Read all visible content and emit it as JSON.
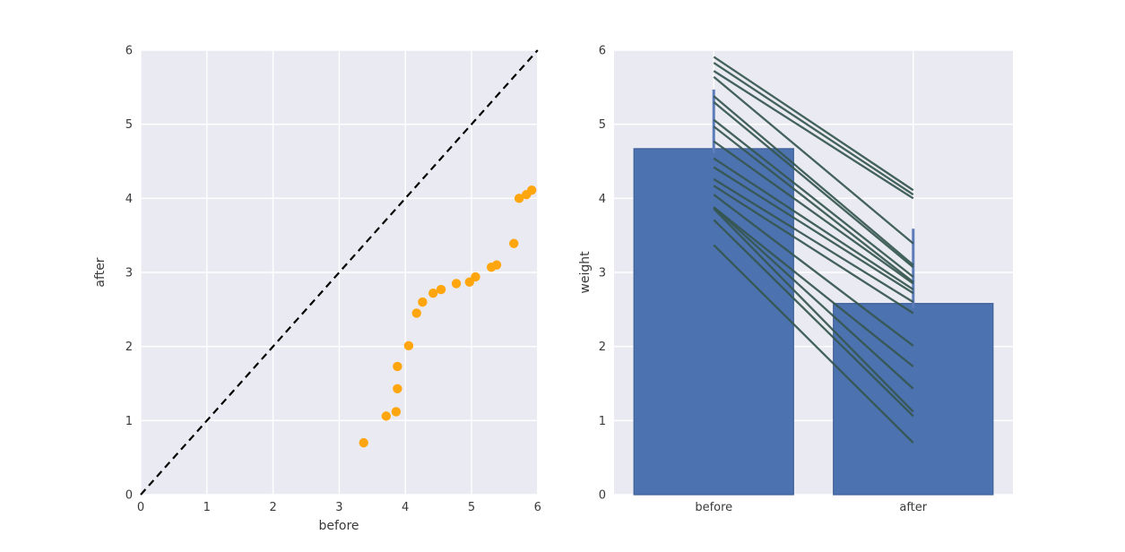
{
  "figure": {
    "background": "#ffffff"
  },
  "palette": {
    "axes_background": "#eaeaf2",
    "grid": "#ffffff",
    "scatter_marker": "#ffa60f",
    "identity_line": "#000000",
    "bar_fill": "#4c72b0",
    "bar_edge": "#41629b",
    "error_bar": "#5c7db9",
    "pair_line": "#35564f",
    "text": "#3a3a3a"
  },
  "chart_data": [
    {
      "id": "scatter-before-after",
      "type": "scatter",
      "title": "",
      "xlabel": "before",
      "ylabel": "after",
      "xlim": [
        0,
        6
      ],
      "ylim": [
        0,
        6
      ],
      "xticks": [
        "0",
        "1",
        "2",
        "3",
        "4",
        "5",
        "6"
      ],
      "yticks": [
        "0",
        "1",
        "2",
        "3",
        "4",
        "5",
        "6"
      ],
      "grid": true,
      "identity_line": {
        "style": "dashed",
        "from": [
          0,
          0
        ],
        "to": [
          6,
          6
        ]
      },
      "points": [
        [
          3.37,
          0.7
        ],
        [
          3.71,
          1.06
        ],
        [
          3.86,
          1.12
        ],
        [
          3.88,
          1.43
        ],
        [
          3.88,
          1.73
        ],
        [
          4.05,
          2.01
        ],
        [
          4.17,
          2.45
        ],
        [
          4.26,
          2.6
        ],
        [
          4.42,
          2.72
        ],
        [
          4.54,
          2.77
        ],
        [
          4.77,
          2.85
        ],
        [
          4.97,
          2.87
        ],
        [
          5.06,
          2.94
        ],
        [
          5.3,
          3.07
        ],
        [
          5.38,
          3.1
        ],
        [
          5.64,
          3.39
        ],
        [
          5.72,
          4.0
        ],
        [
          5.83,
          4.05
        ],
        [
          5.91,
          4.11
        ]
      ]
    },
    {
      "id": "paired-bar-weight",
      "type": "bar",
      "title": "",
      "categories": [
        "before",
        "after"
      ],
      "values": [
        4.67,
        2.58
      ],
      "error_intervals": [
        [
          3.87,
          5.47
        ],
        [
          1.57,
          3.59
        ]
      ],
      "xlabel": "",
      "ylabel": "weight",
      "ylim": [
        0,
        6
      ],
      "yticks": [
        "0",
        "1",
        "2",
        "3",
        "4",
        "5",
        "6"
      ],
      "grid": true,
      "pairs": [
        [
          3.37,
          0.7
        ],
        [
          3.71,
          1.06
        ],
        [
          3.86,
          1.12
        ],
        [
          3.88,
          1.43
        ],
        [
          3.88,
          1.73
        ],
        [
          4.05,
          2.01
        ],
        [
          4.17,
          2.45
        ],
        [
          4.26,
          2.6
        ],
        [
          4.42,
          2.72
        ],
        [
          4.54,
          2.77
        ],
        [
          4.77,
          2.85
        ],
        [
          4.97,
          2.87
        ],
        [
          5.06,
          2.94
        ],
        [
          5.3,
          3.07
        ],
        [
          5.38,
          3.1
        ],
        [
          5.64,
          3.39
        ],
        [
          5.72,
          4.0
        ],
        [
          5.83,
          4.05
        ],
        [
          5.91,
          4.11
        ]
      ]
    }
  ]
}
